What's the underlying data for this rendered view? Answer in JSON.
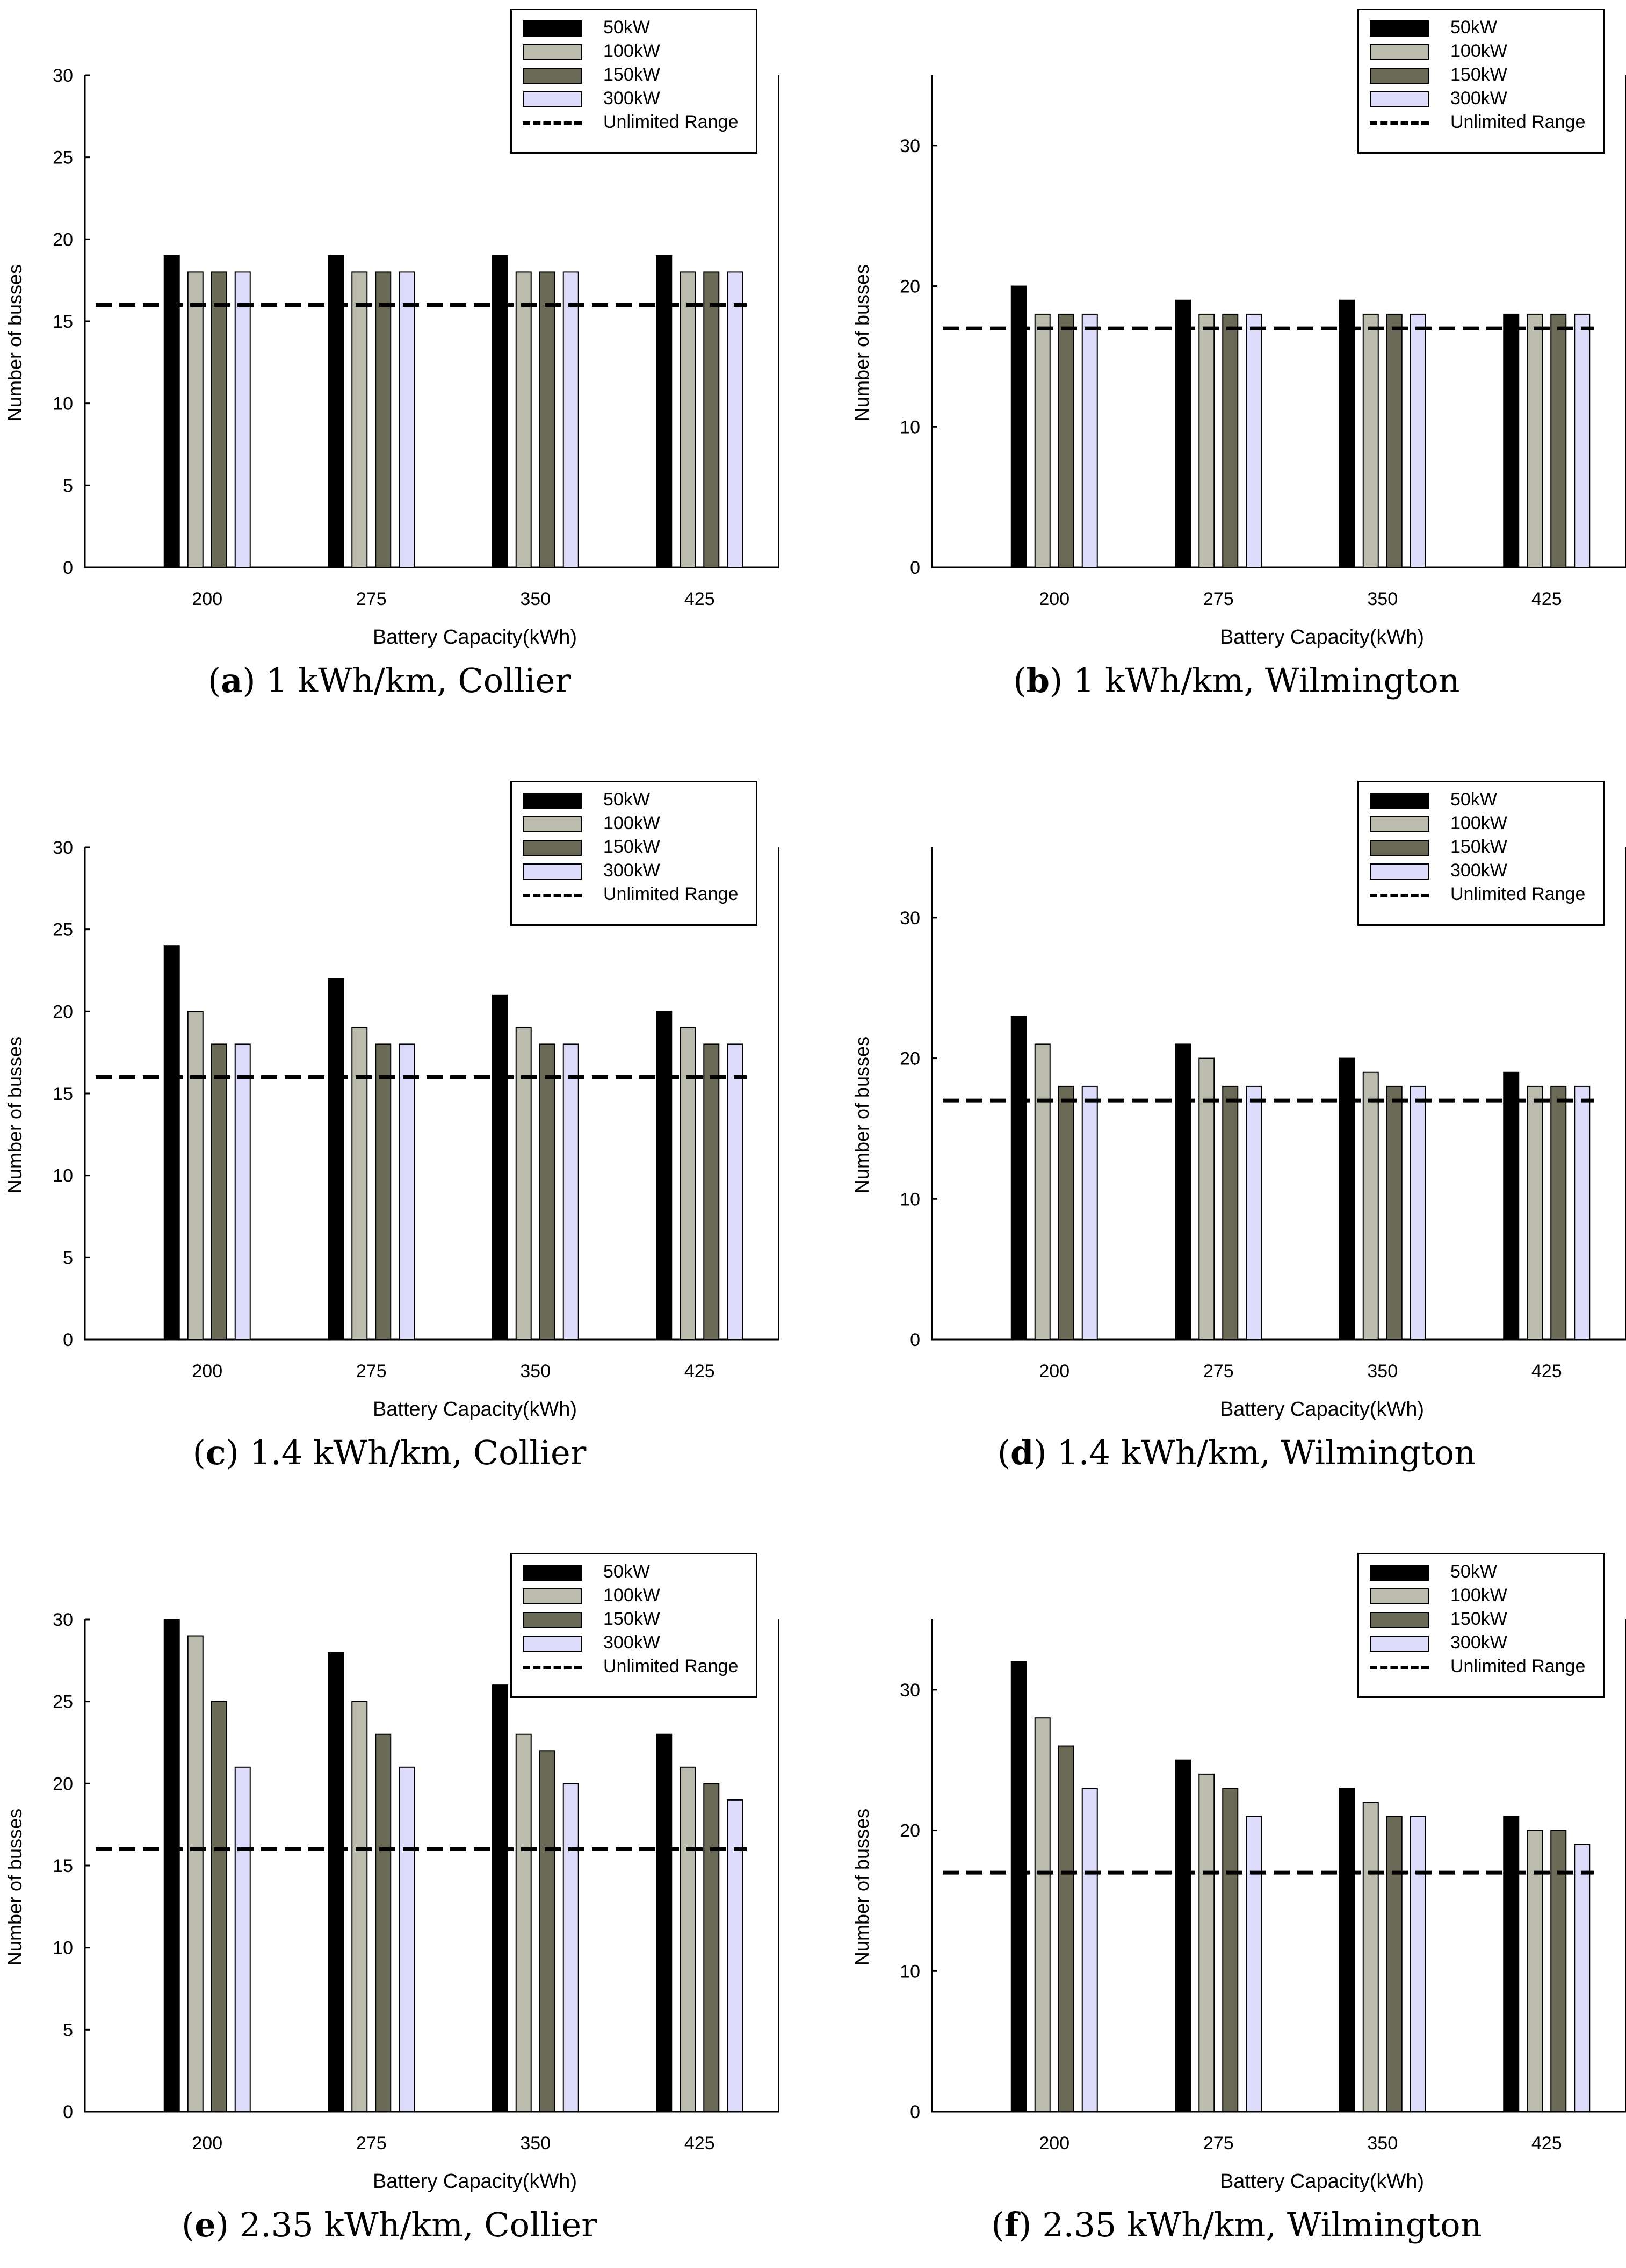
{
  "colors": {
    "50kW": "#000000",
    "100kW": "#bbbbae",
    "150kW": "#6b6a57",
    "300kW": "#dedcfb",
    "unlimited": "#000000"
  },
  "chart_data": [
    {
      "type": "bar",
      "id": "a",
      "letter": "a",
      "caption": "1 kWh/km, Collier",
      "xlabel": "Battery Capacity(kWh)",
      "ylabel": "Number of busses",
      "categories": [
        "200",
        "275",
        "350",
        "425"
      ],
      "ylim": [
        0,
        30
      ],
      "yticks": [
        "0",
        "5",
        "10",
        "15",
        "20",
        "25",
        "30"
      ],
      "series": [
        {
          "name": "50kW",
          "values": [
            19,
            19,
            19,
            19
          ]
        },
        {
          "name": "100kW",
          "values": [
            18,
            18,
            18,
            18
          ]
        },
        {
          "name": "150kW",
          "values": [
            18,
            18,
            18,
            18
          ]
        },
        {
          "name": "300kW",
          "values": [
            18,
            18,
            18,
            18
          ]
        }
      ],
      "reference_line": {
        "name": "Unlimited Range",
        "value": 16
      },
      "legend_position": "top-right"
    },
    {
      "type": "bar",
      "id": "b",
      "letter": "b",
      "caption": "1 kWh/km, Wilmington",
      "xlabel": "Battery Capacity(kWh)",
      "ylabel": "Number of busses",
      "categories": [
        "200",
        "275",
        "350",
        "425"
      ],
      "ylim": [
        0,
        35
      ],
      "yticks": [
        "0",
        "10",
        "20",
        "30"
      ],
      "series": [
        {
          "name": "50kW",
          "values": [
            20,
            19,
            19,
            18
          ]
        },
        {
          "name": "100kW",
          "values": [
            18,
            18,
            18,
            18
          ]
        },
        {
          "name": "150kW",
          "values": [
            18,
            18,
            18,
            18
          ]
        },
        {
          "name": "300kW",
          "values": [
            18,
            18,
            18,
            18
          ]
        }
      ],
      "reference_line": {
        "name": "Unlimited Range",
        "value": 17
      },
      "legend_position": "top-right"
    },
    {
      "type": "bar",
      "id": "c",
      "letter": "c",
      "caption": "1.4 kWh/km, Collier",
      "xlabel": "Battery Capacity(kWh)",
      "ylabel": "Number of busses",
      "categories": [
        "200",
        "275",
        "350",
        "425"
      ],
      "ylim": [
        0,
        30
      ],
      "yticks": [
        "0",
        "5",
        "10",
        "15",
        "20",
        "25",
        "30"
      ],
      "series": [
        {
          "name": "50kW",
          "values": [
            24,
            22,
            21,
            20
          ]
        },
        {
          "name": "100kW",
          "values": [
            20,
            19,
            19,
            19
          ]
        },
        {
          "name": "150kW",
          "values": [
            18,
            18,
            18,
            18
          ]
        },
        {
          "name": "300kW",
          "values": [
            18,
            18,
            18,
            18
          ]
        }
      ],
      "reference_line": {
        "name": "Unlimited Range",
        "value": 16
      },
      "legend_position": "top-right"
    },
    {
      "type": "bar",
      "id": "d",
      "letter": "d",
      "caption": "1.4 kWh/km, Wilmington",
      "xlabel": "Battery Capacity(kWh)",
      "ylabel": "Number of busses",
      "categories": [
        "200",
        "275",
        "350",
        "425"
      ],
      "ylim": [
        0,
        35
      ],
      "yticks": [
        "0",
        "10",
        "20",
        "30"
      ],
      "series": [
        {
          "name": "50kW",
          "values": [
            23,
            21,
            20,
            19
          ]
        },
        {
          "name": "100kW",
          "values": [
            21,
            20,
            19,
            18
          ]
        },
        {
          "name": "150kW",
          "values": [
            18,
            18,
            18,
            18
          ]
        },
        {
          "name": "300kW",
          "values": [
            18,
            18,
            18,
            18
          ]
        }
      ],
      "reference_line": {
        "name": "Unlimited Range",
        "value": 17
      },
      "legend_position": "top-right"
    },
    {
      "type": "bar",
      "id": "e",
      "letter": "e",
      "caption": "2.35 kWh/km, Collier",
      "xlabel": "Battery Capacity(kWh)",
      "ylabel": "Number of busses",
      "categories": [
        "200",
        "275",
        "350",
        "425"
      ],
      "ylim": [
        0,
        30
      ],
      "yticks": [
        "0",
        "5",
        "10",
        "15",
        "20",
        "25",
        "30"
      ],
      "series": [
        {
          "name": "50kW",
          "values": [
            30,
            28,
            26,
            23
          ]
        },
        {
          "name": "100kW",
          "values": [
            29,
            25,
            23,
            21
          ]
        },
        {
          "name": "150kW",
          "values": [
            25,
            23,
            22,
            20
          ]
        },
        {
          "name": "300kW",
          "values": [
            21,
            21,
            20,
            19
          ]
        }
      ],
      "reference_line": {
        "name": "Unlimited Range",
        "value": 16
      },
      "legend_position": "top-right"
    },
    {
      "type": "bar",
      "id": "f",
      "letter": "f",
      "caption": "2.35 kWh/km, Wilmington",
      "xlabel": "Battery Capacity(kWh)",
      "ylabel": "Number of busses",
      "categories": [
        "200",
        "275",
        "350",
        "425"
      ],
      "ylim": [
        0,
        35
      ],
      "yticks": [
        "0",
        "10",
        "20",
        "30"
      ],
      "series": [
        {
          "name": "50kW",
          "values": [
            32,
            25,
            23,
            21
          ]
        },
        {
          "name": "100kW",
          "values": [
            28,
            24,
            22,
            20
          ]
        },
        {
          "name": "150kW",
          "values": [
            26,
            23,
            21,
            20
          ]
        },
        {
          "name": "300kW",
          "values": [
            23,
            21,
            21,
            19
          ]
        }
      ],
      "reference_line": {
        "name": "Unlimited Range",
        "value": 17
      },
      "legend_position": "top-right"
    }
  ]
}
